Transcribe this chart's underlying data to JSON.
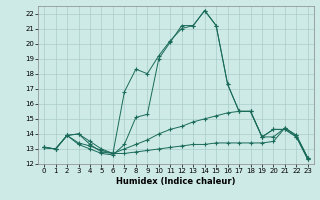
{
  "xlabel": "Humidex (Indice chaleur)",
  "bg_color": "#ceeae6",
  "line_color": "#1a6b5a",
  "grid_color": "#aaccc8",
  "xlim": [
    -0.5,
    23.5
  ],
  "ylim": [
    12,
    22.5
  ],
  "xticks": [
    0,
    1,
    2,
    3,
    4,
    5,
    6,
    7,
    8,
    9,
    10,
    11,
    12,
    13,
    14,
    15,
    16,
    17,
    18,
    19,
    20,
    21,
    22,
    23
  ],
  "yticks": [
    12,
    13,
    14,
    15,
    16,
    17,
    18,
    19,
    20,
    21,
    22
  ],
  "lines": [
    {
      "x": [
        0,
        1,
        2,
        3,
        4,
        5,
        6,
        7,
        8,
        9,
        10,
        11,
        12,
        13,
        14,
        15,
        16,
        17,
        18,
        19,
        20,
        21,
        22,
        23
      ],
      "y": [
        13.1,
        13.0,
        13.9,
        13.3,
        13.0,
        12.7,
        12.6,
        13.3,
        15.1,
        15.3,
        19.0,
        20.1,
        21.2,
        21.2,
        22.2,
        21.2,
        17.3,
        15.5,
        15.5,
        13.8,
        14.3,
        14.3,
        13.8,
        12.3
      ]
    },
    {
      "x": [
        0,
        1,
        2,
        3,
        4,
        5,
        6,
        7,
        8,
        9,
        10,
        11,
        12,
        13,
        14,
        15,
        16,
        17,
        18,
        19,
        20,
        21,
        22,
        23
      ],
      "y": [
        13.1,
        13.0,
        13.9,
        14.0,
        13.5,
        13.0,
        12.7,
        16.8,
        18.3,
        18.0,
        19.2,
        20.2,
        21.0,
        21.2,
        22.2,
        21.2,
        17.3,
        15.5,
        15.5,
        13.8,
        14.3,
        14.3,
        13.8,
        12.3
      ]
    },
    {
      "x": [
        0,
        1,
        2,
        3,
        4,
        5,
        6,
        7,
        8,
        9,
        10,
        11,
        12,
        13,
        14,
        15,
        16,
        17,
        18,
        19,
        20,
        21,
        22,
        23
      ],
      "y": [
        13.1,
        13.0,
        13.9,
        13.4,
        13.2,
        12.9,
        12.7,
        13.0,
        13.3,
        13.6,
        14.0,
        14.3,
        14.5,
        14.8,
        15.0,
        15.2,
        15.4,
        15.5,
        15.5,
        13.8,
        13.8,
        14.4,
        13.9,
        12.4
      ]
    },
    {
      "x": [
        0,
        1,
        2,
        3,
        4,
        5,
        6,
        7,
        8,
        9,
        10,
        11,
        12,
        13,
        14,
        15,
        16,
        17,
        18,
        19,
        20,
        21,
        22,
        23
      ],
      "y": [
        13.1,
        13.0,
        13.9,
        14.0,
        13.3,
        12.8,
        12.7,
        12.7,
        12.8,
        12.9,
        13.0,
        13.1,
        13.2,
        13.3,
        13.3,
        13.4,
        13.4,
        13.4,
        13.4,
        13.4,
        13.5,
        14.4,
        13.9,
        12.4
      ]
    }
  ]
}
